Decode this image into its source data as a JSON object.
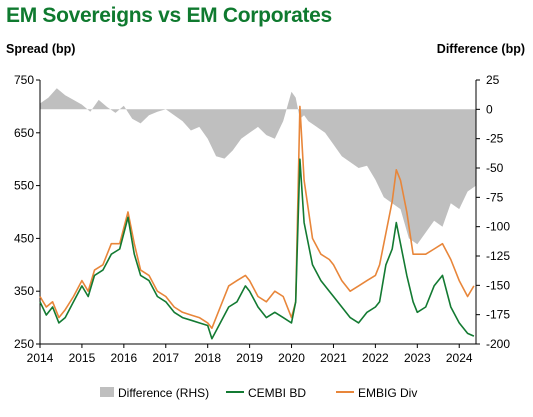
{
  "chart_data": {
    "type": "line",
    "title": "EM Sovereigns vs EM Corporates",
    "ylabel_left": "Spread (bp)",
    "ylabel_right": "Difference (bp)",
    "x_ticks": [
      "2014",
      "2015",
      "2016",
      "2017",
      "2018",
      "2019",
      "2020",
      "2021",
      "2022",
      "2023",
      "2024"
    ],
    "y_left": {
      "min": 250,
      "max": 750,
      "ticks": [
        250,
        350,
        450,
        550,
        650,
        750
      ]
    },
    "y_right": {
      "min": -200,
      "max": 25,
      "ticks": [
        25,
        0,
        -25,
        -50,
        -75,
        -100,
        -125,
        -150,
        -175,
        -200
      ]
    },
    "x_range": [
      2014.0,
      2024.4
    ],
    "legend_position": "bottom",
    "colors": {
      "cembi": "#137a32",
      "embig": "#e8863a",
      "diff": "#bfbfbf"
    },
    "series": [
      {
        "name": "Difference (RHS)",
        "axis": "right",
        "style": "area",
        "x": [
          2014.0,
          2014.2,
          2014.4,
          2014.6,
          2014.8,
          2015.0,
          2015.2,
          2015.4,
          2015.6,
          2015.8,
          2016.0,
          2016.2,
          2016.4,
          2016.6,
          2016.8,
          2017.0,
          2017.2,
          2017.4,
          2017.6,
          2017.8,
          2018.0,
          2018.2,
          2018.4,
          2018.6,
          2018.8,
          2019.0,
          2019.2,
          2019.4,
          2019.6,
          2019.8,
          2020.0,
          2020.1,
          2020.2,
          2020.3,
          2020.4,
          2020.6,
          2020.8,
          2021.0,
          2021.2,
          2021.4,
          2021.6,
          2021.8,
          2022.0,
          2022.2,
          2022.4,
          2022.6,
          2022.8,
          2023.0,
          2023.2,
          2023.4,
          2023.6,
          2023.8,
          2024.0,
          2024.2,
          2024.4
        ],
        "values": [
          5,
          10,
          18,
          12,
          8,
          4,
          -2,
          8,
          2,
          -3,
          3,
          -8,
          -12,
          -5,
          -2,
          0,
          -5,
          -10,
          -18,
          -15,
          -25,
          -40,
          -42,
          -35,
          -25,
          -20,
          -15,
          -22,
          -25,
          -10,
          15,
          10,
          -8,
          -5,
          -10,
          -15,
          -20,
          -30,
          -40,
          -45,
          -50,
          -48,
          -60,
          -75,
          -80,
          -85,
          -110,
          -115,
          -105,
          -95,
          -100,
          -80,
          -85,
          -70,
          -65
        ]
      },
      {
        "name": "CEMBI BD",
        "axis": "left",
        "style": "line",
        "x": [
          2014.0,
          2014.15,
          2014.3,
          2014.45,
          2014.6,
          2014.8,
          2015.0,
          2015.15,
          2015.3,
          2015.5,
          2015.7,
          2015.9,
          2016.1,
          2016.25,
          2016.4,
          2016.6,
          2016.8,
          2017.0,
          2017.2,
          2017.4,
          2017.6,
          2017.8,
          2018.0,
          2018.1,
          2018.3,
          2018.5,
          2018.7,
          2018.9,
          2019.0,
          2019.2,
          2019.4,
          2019.6,
          2019.8,
          2020.0,
          2020.1,
          2020.2,
          2020.3,
          2020.5,
          2020.7,
          2020.9,
          2021.0,
          2021.2,
          2021.4,
          2021.6,
          2021.8,
          2022.0,
          2022.1,
          2022.25,
          2022.4,
          2022.5,
          2022.6,
          2022.75,
          2022.9,
          2023.0,
          2023.2,
          2023.4,
          2023.6,
          2023.8,
          2024.0,
          2024.2,
          2024.35
        ],
        "values": [
          330,
          305,
          320,
          290,
          300,
          330,
          360,
          340,
          380,
          390,
          420,
          430,
          490,
          420,
          380,
          370,
          340,
          330,
          310,
          300,
          295,
          290,
          285,
          260,
          290,
          320,
          330,
          360,
          350,
          320,
          300,
          310,
          300,
          290,
          330,
          600,
          480,
          400,
          370,
          350,
          340,
          320,
          300,
          290,
          310,
          320,
          330,
          400,
          430,
          480,
          440,
          380,
          330,
          310,
          320,
          360,
          380,
          320,
          290,
          270,
          265
        ]
      },
      {
        "name": "EMBIG Div",
        "axis": "left",
        "style": "line",
        "x": [
          2014.0,
          2014.15,
          2014.3,
          2014.45,
          2014.6,
          2014.8,
          2015.0,
          2015.15,
          2015.3,
          2015.5,
          2015.7,
          2015.9,
          2016.1,
          2016.25,
          2016.4,
          2016.6,
          2016.8,
          2017.0,
          2017.2,
          2017.4,
          2017.6,
          2017.8,
          2018.0,
          2018.1,
          2018.3,
          2018.5,
          2018.7,
          2018.9,
          2019.0,
          2019.2,
          2019.4,
          2019.6,
          2019.8,
          2020.0,
          2020.1,
          2020.2,
          2020.3,
          2020.5,
          2020.7,
          2020.9,
          2021.0,
          2021.2,
          2021.4,
          2021.6,
          2021.8,
          2022.0,
          2022.1,
          2022.25,
          2022.4,
          2022.5,
          2022.6,
          2022.75,
          2022.9,
          2023.0,
          2023.2,
          2023.4,
          2023.6,
          2023.8,
          2024.0,
          2024.2,
          2024.35
        ],
        "values": [
          340,
          320,
          330,
          300,
          315,
          340,
          370,
          350,
          390,
          400,
          440,
          440,
          500,
          440,
          390,
          380,
          350,
          340,
          320,
          310,
          305,
          300,
          290,
          280,
          320,
          360,
          370,
          380,
          370,
          340,
          330,
          350,
          340,
          300,
          330,
          700,
          560,
          450,
          420,
          410,
          400,
          370,
          350,
          360,
          370,
          380,
          400,
          460,
          520,
          580,
          560,
          500,
          420,
          420,
          420,
          430,
          440,
          410,
          370,
          340,
          360
        ]
      }
    ]
  },
  "legend": [
    {
      "label": "Difference (RHS)"
    },
    {
      "label": "CEMBI BD"
    },
    {
      "label": "EMBIG Div"
    }
  ]
}
